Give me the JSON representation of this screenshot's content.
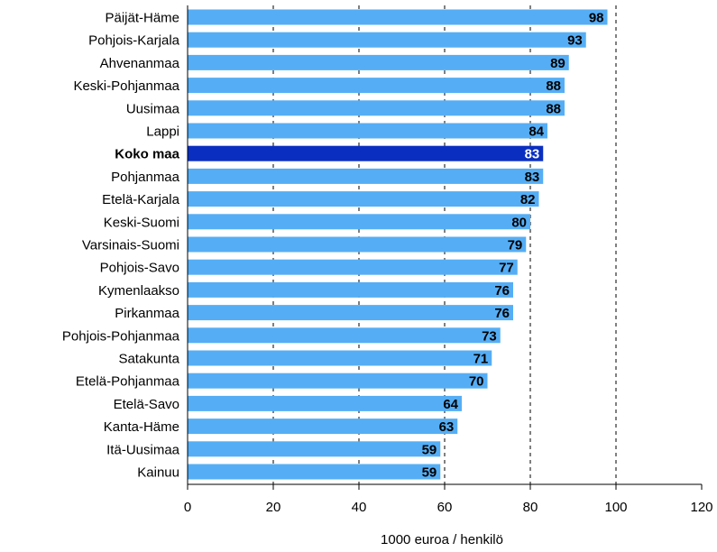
{
  "chart_data": {
    "type": "bar",
    "orientation": "horizontal",
    "title": "",
    "xlabel": "1000 euroa / henkilö",
    "ylabel": "",
    "xlim": [
      0,
      120
    ],
    "xticks": [
      0,
      20,
      40,
      60,
      80,
      100,
      120
    ],
    "grid": "vertical dashed",
    "categories": [
      "Päijät-Häme",
      "Pohjois-Karjala",
      "Ahvenanmaa",
      "Keski-Pohjanmaa",
      "Uusimaa",
      "Lappi",
      "Koko maa",
      "Pohjanmaa",
      "Etelä-Karjala",
      "Keski-Suomi",
      "Varsinais-Suomi",
      "Pohjois-Savo",
      "Kymenlaakso",
      "Pirkanmaa",
      "Pohjois-Pohjanmaa",
      "Satakunta",
      "Etelä-Pohjanmaa",
      "Etelä-Savo",
      "Kanta-Häme",
      "Itä-Uusimaa",
      "Kainuu"
    ],
    "values": [
      98,
      93,
      89,
      88,
      88,
      84,
      83,
      83,
      82,
      80,
      79,
      77,
      76,
      76,
      73,
      71,
      70,
      64,
      63,
      59,
      59
    ],
    "highlight_category": "Koko maa",
    "colors": {
      "bar": "#55AEF5",
      "highlight_bar": "#0A2FC0",
      "grid": "#000000",
      "axis": "#000000"
    }
  }
}
